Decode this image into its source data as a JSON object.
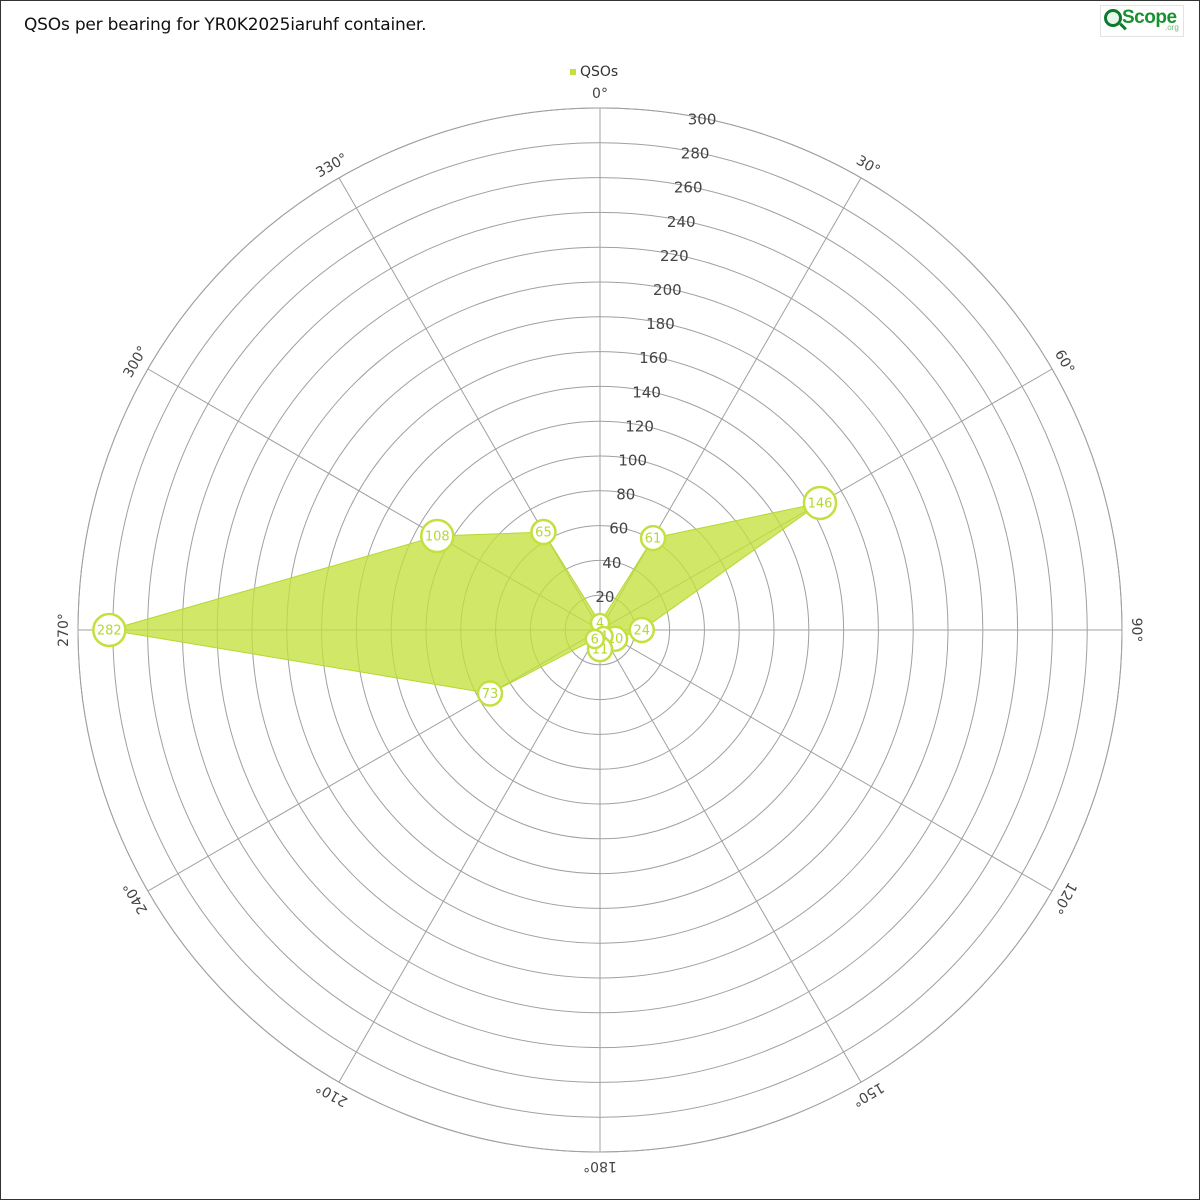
{
  "page": {
    "title": "QSOs per bearing for YR0K2025iaruhf container.",
    "logo_text": "Scope",
    "logo_sub": ".org"
  },
  "chart_data": {
    "type": "radar",
    "title": "QSOs per bearing for YR0K2025iaruhf container.",
    "legend": {
      "placement": "top-center",
      "entries": [
        "QSOs"
      ]
    },
    "angle_ticks": [
      "0°",
      "30°",
      "60°",
      "90°",
      "120°",
      "150°",
      "180°",
      "210°",
      "240°",
      "270°",
      "300°",
      "330°"
    ],
    "radial_ticks": [
      20,
      40,
      60,
      80,
      100,
      120,
      140,
      160,
      180,
      200,
      220,
      240,
      260,
      280,
      300
    ],
    "rlim": [
      0,
      300
    ],
    "grid": true,
    "colors": {
      "fill": "#c3e03e",
      "stroke": "#b4d930",
      "marker_stroke": "#c3e03e",
      "label": "#b4d930",
      "grid": "#a0a0a0"
    },
    "series": [
      {
        "name": "QSOs",
        "points": [
          {
            "bearing": 0,
            "value": 4
          },
          {
            "bearing": 30,
            "value": 61
          },
          {
            "bearing": 60,
            "value": 146
          },
          {
            "bearing": 90,
            "value": 24
          },
          {
            "bearing": 120,
            "value": 10
          },
          {
            "bearing": 150,
            "value": 4
          },
          {
            "bearing": 180,
            "value": 11
          },
          {
            "bearing": 210,
            "value": 6
          },
          {
            "bearing": 240,
            "value": 73
          },
          {
            "bearing": 270,
            "value": 282
          },
          {
            "bearing": 300,
            "value": 108
          },
          {
            "bearing": 330,
            "value": 65
          }
        ]
      }
    ]
  }
}
